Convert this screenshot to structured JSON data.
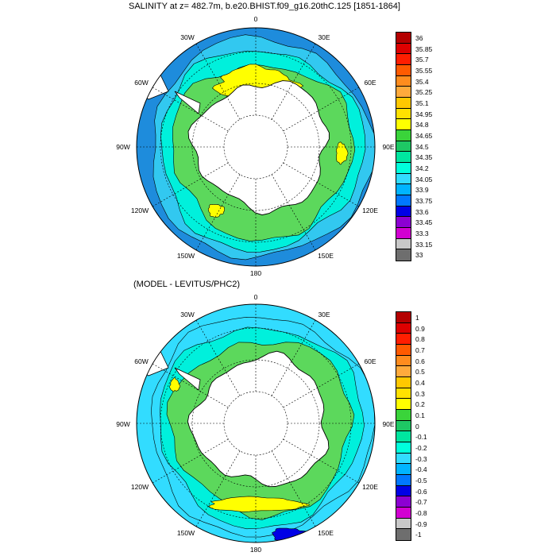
{
  "panels": [
    {
      "title": "SALINITY at z= 482.7m, b.e20.BHIST.f09_g16.20thC.125 [1851-1864]",
      "longitude_labels": [
        "0",
        "30E",
        "60E",
        "90E",
        "120E",
        "150E",
        "180",
        "150W",
        "120W",
        "90W",
        "60W",
        "30W"
      ],
      "colorbar": {
        "tick_labels": [
          "36",
          "35.85",
          "35.7",
          "35.55",
          "35.4",
          "35.25",
          "35.1",
          "34.95",
          "34.8",
          "34.65",
          "34.5",
          "34.35",
          "34.2",
          "34.05",
          "33.9",
          "33.75",
          "33.6",
          "33.45",
          "33.3",
          "33.15",
          "33"
        ],
        "colors": [
          "#b40000",
          "#dd0000",
          "#ff1e00",
          "#ff5a00",
          "#ff8c1e",
          "#ffaa3c",
          "#ffc800",
          "#ffe100",
          "#ffff00",
          "#3ad43a",
          "#1ec864",
          "#00e6a0",
          "#00ffdc",
          "#32dcff",
          "#00b4ff",
          "#0078ff",
          "#0000e6",
          "#8c00d2",
          "#d200d2",
          "#c8c8c8",
          "#6e6e6e"
        ]
      },
      "map_colors": {
        "ocean_outer": "#1e8cdc",
        "ocean_mid": "#32c8f0",
        "ocean_inner": "#00f0dc",
        "acc": "#5cd85c",
        "core": "#ffff00",
        "land": "#ffffff",
        "coast": "#000000"
      }
    },
    {
      "title": "(MODEL - LEVITUS/PHC2)",
      "longitude_labels": [
        "0",
        "30E",
        "60E",
        "90E",
        "120E",
        "150E",
        "180",
        "150W",
        "120W",
        "90W",
        "60W",
        "30W"
      ],
      "colorbar": {
        "tick_labels": [
          "1",
          "0.9",
          "0.8",
          "0.7",
          "0.6",
          "0.5",
          "0.4",
          "0.3",
          "0.2",
          "0.1",
          "0",
          "-0.1",
          "-0.2",
          "-0.3",
          "-0.4",
          "-0.5",
          "-0.6",
          "-0.7",
          "-0.8",
          "-0.9",
          "-1"
        ],
        "colors": [
          "#b40000",
          "#dd0000",
          "#ff1e00",
          "#ff5a00",
          "#ff8c1e",
          "#ffaa3c",
          "#ffc800",
          "#ffe100",
          "#ffff00",
          "#3ad43a",
          "#1ec864",
          "#00e6a0",
          "#00ffdc",
          "#32dcff",
          "#00b4ff",
          "#0078ff",
          "#0000e6",
          "#8c00d2",
          "#d200d2",
          "#c8c8c8",
          "#6e6e6e"
        ]
      },
      "map_colors": {
        "ocean_outer": "#32dcff",
        "ocean_mid": "#32dcff",
        "ocean_inner": "#00f0dc",
        "acc": "#5cd85c",
        "core": "#ffff00",
        "land": "#ffffff",
        "coast": "#000000"
      }
    }
  ]
}
